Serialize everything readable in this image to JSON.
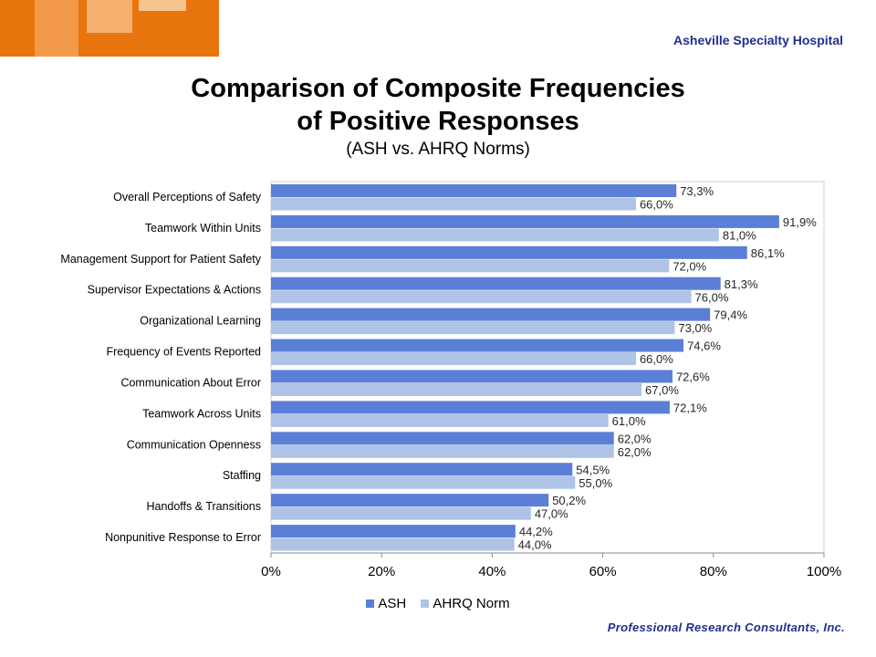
{
  "header": {
    "hospital_name": "Asheville Specialty Hospital",
    "title_line1": "Comparison of Composite Frequencies",
    "title_line2": "of Positive Responses",
    "subtitle": "(ASH vs. AHRQ Norms)"
  },
  "footer": {
    "logo_text": "Professional Research Consultants, Inc."
  },
  "colors": {
    "ash": "#5b7fd6",
    "ahrq": "#aec3e6",
    "orange": "#e8740e",
    "brand_blue": "#1f2f8f"
  },
  "chart_data": {
    "type": "bar",
    "orientation": "horizontal",
    "categories": [
      "Overall Perceptions of Safety",
      "Teamwork Within Units",
      "Management Support for Patient Safety",
      "Supervisor Expectations & Actions",
      "Organizational Learning",
      "Frequency of Events Reported",
      "Communication About Error",
      "Teamwork Across Units",
      "Communication Openness",
      "Staffing",
      "Handoffs & Transitions",
      "Nonpunitive Response to Error"
    ],
    "series": [
      {
        "name": "ASH",
        "values": [
          73.3,
          91.9,
          86.1,
          81.3,
          79.4,
          74.6,
          72.6,
          72.1,
          62.0,
          54.5,
          50.2,
          44.2
        ],
        "labels": [
          "73,3%",
          "91,9%",
          "86,1%",
          "81,3%",
          "79,4%",
          "74,6%",
          "72,6%",
          "72,1%",
          "62,0%",
          "54,5%",
          "50,2%",
          "44,2%"
        ]
      },
      {
        "name": "AHRQ Norm",
        "values": [
          66.0,
          81.0,
          72.0,
          76.0,
          73.0,
          66.0,
          67.0,
          61.0,
          62.0,
          55.0,
          47.0,
          44.0
        ],
        "labels": [
          "66,0%",
          "81,0%",
          "72,0%",
          "76,0%",
          "73,0%",
          "66,0%",
          "67,0%",
          "61,0%",
          "62,0%",
          "55,0%",
          "47,0%",
          "44,0%"
        ]
      }
    ],
    "xlim": [
      0,
      100
    ],
    "xticks": [
      "0%",
      "20%",
      "40%",
      "60%",
      "80%",
      "100%"
    ],
    "legend_position": "bottom",
    "grid": false
  }
}
